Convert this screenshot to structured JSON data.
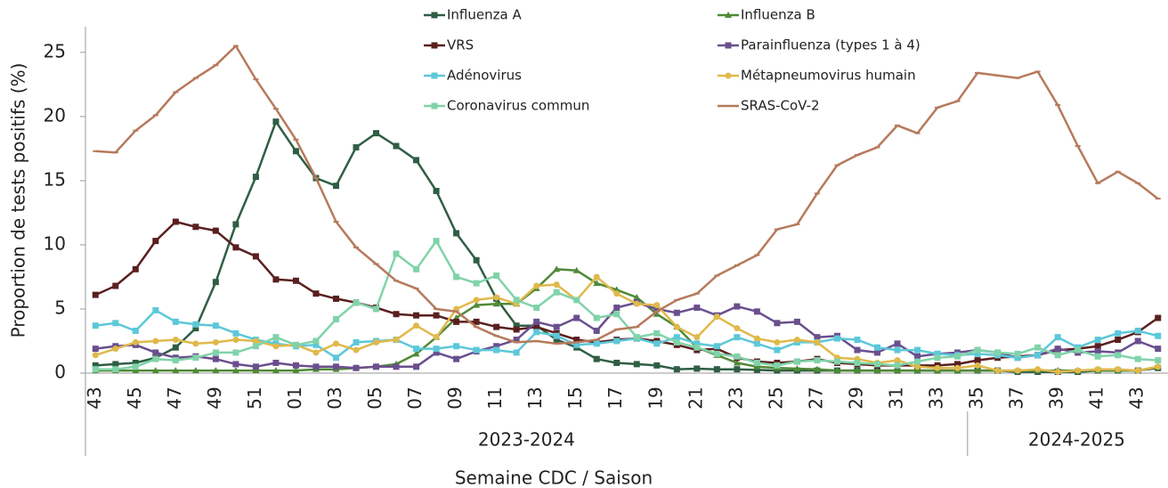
{
  "chart_data": {
    "type": "line",
    "y_label": "Proportion de tests positifs (%)",
    "x_label": "Semaine CDC / Saison",
    "categories": [
      "43",
      null,
      "45",
      null,
      "47",
      null,
      "49",
      null,
      "51",
      null,
      "01",
      null,
      "03",
      null,
      "05",
      null,
      "07",
      null,
      "09",
      null,
      "11",
      null,
      "13",
      null,
      "15",
      null,
      "17",
      null,
      "19",
      null,
      "21",
      null,
      "23",
      null,
      "25",
      null,
      "27",
      null,
      "29",
      null,
      "31",
      null,
      "33",
      null,
      "35",
      null,
      "37",
      null,
      "39",
      null,
      "41",
      null,
      "43",
      null
    ],
    "x_groups": [
      {
        "label": "2023-2024",
        "categories": 44
      },
      {
        "label": "2024-2025",
        "categories": 10
      }
    ],
    "ylim": [
      0,
      27
    ],
    "yticks": [
      0,
      5,
      10,
      15,
      20,
      25
    ],
    "grid": false,
    "series": [
      {
        "name": "Influenza A",
        "color": "#2f5e44",
        "marker": "square",
        "values": [
          0.6,
          0.7,
          0.8,
          1.2,
          2.0,
          3.5,
          7.1,
          11.6,
          15.3,
          19.6,
          17.3,
          15.2,
          14.6,
          17.6,
          18.7,
          17.7,
          16.6,
          14.2,
          10.9,
          8.8,
          5.8,
          3.7,
          3.7,
          2.6,
          2.0,
          1.1,
          0.8,
          0.7,
          0.6,
          0.3,
          0.35,
          0.3,
          0.3,
          0.25,
          0.2,
          0.2,
          0.2,
          0.2,
          0.2,
          0.2,
          0.2,
          0.2,
          0.2,
          0.2,
          0.2,
          0.2,
          0.1,
          0.1,
          0.1,
          0.1,
          0.2,
          0.2,
          0.2,
          0.4
        ]
      },
      {
        "name": "Influenza B",
        "color": "#4f8a36",
        "marker": "triangle",
        "values": [
          0.2,
          0.2,
          0.2,
          0.2,
          0.2,
          0.2,
          0.2,
          0.2,
          0.2,
          0.2,
          0.2,
          0.3,
          0.3,
          0.4,
          0.5,
          0.7,
          1.5,
          2.8,
          4.3,
          5.3,
          5.4,
          5.4,
          6.6,
          8.1,
          8.0,
          7.0,
          6.5,
          5.9,
          4.6,
          3.6,
          2.0,
          1.4,
          0.8,
          0.5,
          0.4,
          0.35,
          0.3,
          0.2,
          0.2,
          0.2,
          0.2,
          0.2,
          0.2,
          0.2,
          0.2,
          0.2,
          0.2,
          0.2,
          0.2,
          0.2,
          0.2,
          0.2,
          0.2,
          0.5
        ]
      },
      {
        "name": "VRS",
        "color": "#5a1f1f",
        "marker": "square",
        "values": [
          6.1,
          6.8,
          8.1,
          10.3,
          11.8,
          11.4,
          11.1,
          9.8,
          9.1,
          7.3,
          7.2,
          6.2,
          5.8,
          5.5,
          5.1,
          4.6,
          4.5,
          4.5,
          4.0,
          4.0,
          3.6,
          3.4,
          3.6,
          3.1,
          2.6,
          2.4,
          2.6,
          2.7,
          2.5,
          2.2,
          1.8,
          1.9,
          1.2,
          0.9,
          0.8,
          0.9,
          1.1,
          0.8,
          0.7,
          0.6,
          0.6,
          0.6,
          0.6,
          0.7,
          1.0,
          1.2,
          1.3,
          1.4,
          1.8,
          1.9,
          2.1,
          2.6,
          3.2,
          4.3
        ]
      },
      {
        "name": "Parainfluenza (types 1 à 4)",
        "color": "#6a4f8e",
        "marker": "square",
        "values": [
          1.9,
          2.1,
          2.2,
          1.6,
          1.2,
          1.3,
          1.1,
          0.7,
          0.5,
          0.8,
          0.6,
          0.5,
          0.5,
          0.4,
          0.5,
          0.5,
          0.5,
          1.6,
          1.1,
          1.7,
          2.1,
          2.6,
          4.0,
          3.6,
          4.3,
          3.3,
          5.1,
          5.5,
          5.0,
          4.7,
          5.1,
          4.5,
          5.2,
          4.8,
          3.9,
          4.0,
          2.8,
          2.9,
          1.8,
          1.6,
          2.3,
          1.3,
          1.5,
          1.6,
          1.8,
          1.6,
          1.2,
          1.4,
          1.9,
          1.6,
          1.7,
          1.6,
          2.5,
          1.9
        ]
      },
      {
        "name": "Adénovirus",
        "color": "#5cc8d9",
        "marker": "square",
        "values": [
          3.7,
          3.9,
          3.3,
          4.9,
          4.0,
          3.8,
          3.7,
          3.1,
          2.6,
          2.3,
          2.1,
          2.2,
          1.2,
          2.4,
          2.5,
          2.6,
          1.9,
          1.9,
          2.1,
          1.8,
          1.8,
          1.6,
          3.2,
          2.9,
          2.2,
          2.3,
          2.5,
          2.7,
          2.3,
          2.8,
          2.3,
          2.1,
          2.8,
          2.3,
          1.8,
          2.4,
          2.4,
          2.7,
          2.6,
          2.0,
          1.8,
          1.8,
          1.5,
          1.4,
          1.5,
          1.4,
          1.2,
          1.4,
          2.8,
          2.0,
          2.6,
          3.1,
          3.3,
          2.9
        ]
      },
      {
        "name": "Métapneumovirus humain",
        "color": "#e0b94b",
        "marker": "circle",
        "values": [
          1.4,
          1.9,
          2.4,
          2.5,
          2.6,
          2.3,
          2.4,
          2.6,
          2.5,
          2.1,
          2.2,
          1.6,
          2.3,
          1.8,
          2.4,
          2.6,
          3.7,
          2.8,
          5.0,
          5.7,
          5.9,
          5.4,
          6.8,
          6.9,
          5.7,
          7.5,
          6.2,
          5.4,
          5.3,
          3.6,
          2.8,
          4.4,
          3.5,
          2.7,
          2.4,
          2.6,
          2.4,
          1.2,
          1.1,
          0.8,
          1.0,
          0.5,
          0.4,
          0.4,
          0.6,
          0.2,
          0.2,
          0.3,
          0.1,
          0.2,
          0.3,
          0.3,
          0.2,
          0.5
        ]
      },
      {
        "name": "Coronavirus commun",
        "color": "#80d3a9",
        "marker": "square",
        "values": [
          0.3,
          0.3,
          0.5,
          1.1,
          1.0,
          1.2,
          1.6,
          1.6,
          2.1,
          2.8,
          2.2,
          2.5,
          4.2,
          5.5,
          5.0,
          9.3,
          8.1,
          10.3,
          7.5,
          7.0,
          7.6,
          5.7,
          5.1,
          6.3,
          5.7,
          4.3,
          4.6,
          2.8,
          3.1,
          2.4,
          2.0,
          1.5,
          1.3,
          0.8,
          0.6,
          0.9,
          1.0,
          0.9,
          0.8,
          0.7,
          0.6,
          0.9,
          1.2,
          1.3,
          1.8,
          1.6,
          1.5,
          2.0,
          1.4,
          1.8,
          1.3,
          1.4,
          1.1,
          1.0
        ]
      },
      {
        "name": "SRAS-CoV-2",
        "color": "#b67a5c",
        "marker": "dash",
        "values": [
          17.3,
          17.2,
          18.9,
          20.1,
          21.9,
          23.0,
          24.0,
          25.5,
          22.9,
          20.6,
          18.2,
          15.2,
          11.8,
          9.8,
          8.5,
          7.2,
          6.6,
          5.0,
          4.8,
          3.6,
          2.9,
          2.4,
          2.5,
          2.3,
          2.4,
          2.6,
          3.4,
          3.6,
          4.8,
          5.7,
          6.2,
          7.6,
          8.4,
          9.2,
          11.2,
          11.6,
          14.0,
          16.2,
          17.0,
          17.6,
          19.3,
          18.7,
          20.7,
          21.2,
          23.4,
          23.2,
          23.0,
          23.5,
          20.9,
          17.7,
          14.8,
          15.7,
          14.8,
          13.6
        ]
      }
    ]
  }
}
